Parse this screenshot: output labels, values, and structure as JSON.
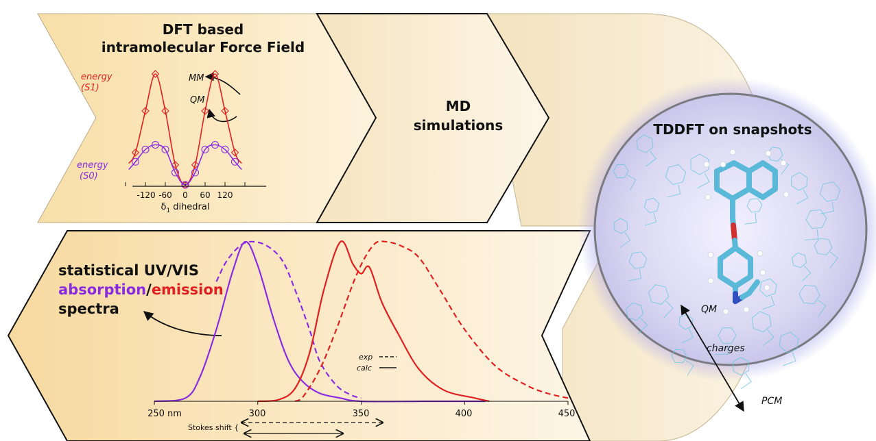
{
  "top_panel": {
    "title_line1": "DFT based",
    "title_line2": "intramolecular Force Field",
    "s1_label_line1": "energy",
    "s1_label_line2": "(S1)",
    "s0_label_line1": "energy",
    "s0_label_line2": "(S0)",
    "mm_label": "MM",
    "qm_label": "QM",
    "x_ticks": [
      "-120",
      "-60",
      "0",
      "60",
      "120"
    ],
    "x_label_symbol": "δ",
    "x_label_subscript": "1",
    "x_label_text": "dihedral"
  },
  "md_panel": {
    "line1": "MD",
    "line2": "simulations"
  },
  "tddft_panel": {
    "title": "TDDFT on snapshots",
    "qm_label": "QM",
    "charges_label": "charges",
    "pcm_label": "PCM"
  },
  "spectra_panel": {
    "title_line1": "statistical UV/VIS",
    "title_absorption": "absorption",
    "title_slash": "/",
    "title_emission": "emission",
    "title_line3": "spectra",
    "legend_exp": "exp",
    "legend_calc": "calc",
    "x_ticks": [
      "250 nm",
      "300",
      "350",
      "400",
      "450"
    ],
    "stokes_label": "Stokes shift {"
  },
  "colors": {
    "s1_red": "#e02020",
    "s0_purple": "#8a2be2",
    "panel_bg": "#fbe6b8",
    "molecule_cyan": "#6cc7de",
    "sphere_glow": "#b9b4ee"
  },
  "chart_data": [
    {
      "type": "line",
      "xlabel": "δ1 dihedral",
      "xlim": [
        -180,
        180
      ],
      "series": [
        {
          "name": "energy (S1)",
          "x": [
            -170,
            -150,
            -120,
            -90,
            -60,
            -30,
            0,
            30,
            60,
            90,
            120,
            150,
            170
          ],
          "values": [
            1.4,
            2.1,
            4.8,
            7.2,
            4.8,
            1.3,
            0,
            1.3,
            4.8,
            7.2,
            4.8,
            2.1,
            1.4
          ]
        },
        {
          "name": "energy (S0)",
          "x": [
            -170,
            -150,
            -120,
            -90,
            -60,
            -30,
            0,
            30,
            60,
            90,
            120,
            150,
            170
          ],
          "values": [
            1.0,
            1.5,
            2.3,
            2.6,
            2.3,
            0.8,
            0,
            0.8,
            2.3,
            2.6,
            2.3,
            1.5,
            1.0
          ]
        }
      ]
    },
    {
      "type": "line",
      "xlim": [
        250,
        450
      ],
      "xticks": [
        250,
        300,
        350,
        400,
        450
      ],
      "series": [
        {
          "name": "absorption calc",
          "x": [
            250,
            265,
            272,
            280,
            288,
            294,
            300,
            308,
            315,
            322,
            330,
            340,
            350,
            380,
            410
          ],
          "values": [
            0,
            0.02,
            0.15,
            0.45,
            0.82,
            1.0,
            0.85,
            0.5,
            0.25,
            0.12,
            0.05,
            0.02,
            0,
            0,
            0
          ]
        },
        {
          "name": "absorption exp",
          "x": [
            280,
            285,
            292,
            298,
            305,
            312,
            318,
            325,
            330,
            338,
            345,
            350
          ],
          "values": [
            0.75,
            0.88,
            0.98,
            1.0,
            0.97,
            0.88,
            0.7,
            0.45,
            0.25,
            0.1,
            0.04,
            0.02
          ]
        },
        {
          "name": "emission calc",
          "x": [
            300,
            310,
            318,
            325,
            332,
            340,
            346,
            350,
            354,
            360,
            368,
            378,
            390,
            405,
            412
          ],
          "values": [
            0,
            0.01,
            0.08,
            0.3,
            0.7,
            1.0,
            0.86,
            0.8,
            0.84,
            0.62,
            0.42,
            0.2,
            0.07,
            0.02,
            0
          ]
        },
        {
          "name": "emission exp",
          "x": [
            318,
            322,
            330,
            338,
            348,
            356,
            362,
            370,
            378,
            388,
            400,
            415,
            430,
            440,
            450
          ],
          "values": [
            0,
            0.03,
            0.2,
            0.45,
            0.8,
            0.98,
            1.0,
            0.97,
            0.9,
            0.7,
            0.45,
            0.22,
            0.1,
            0.05,
            0.02
          ]
        }
      ]
    }
  ]
}
